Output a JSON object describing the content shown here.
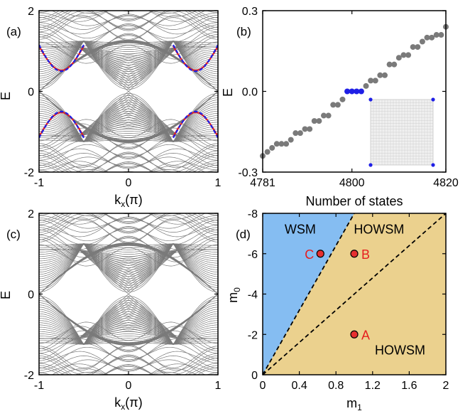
{
  "panels": {
    "a": {
      "label": "(a)"
    },
    "b": {
      "label": "(b)"
    },
    "c": {
      "label": "(c)"
    },
    "d": {
      "label": "(d)"
    }
  },
  "colors": {
    "bulk": "#7a7a7a",
    "state_dot": "#7a7a7a",
    "zero_mode": "#1f1fe6",
    "edge_blue": "#1f1fe6",
    "edge_red": "#e61f1f",
    "wsm_region": "#85bdf2",
    "howsm_region": "#ebd18e",
    "point": "#e63030",
    "point_label": "#e61f1f"
  },
  "chart_data": [
    {
      "panel": "a",
      "type": "line",
      "xlabel": "k",
      "xlabel_sub": "x",
      "xlabel_unit": "(π)",
      "ylabel": "E",
      "xlim": [
        -1,
        1
      ],
      "ylim": [
        -2,
        2
      ],
      "xticks": [
        -1,
        0,
        1
      ],
      "yticks": [
        -2,
        0,
        2
      ],
      "xtick_labels": [
        "-1",
        "0",
        "1"
      ],
      "ytick_labels": [
        "-2",
        "0",
        "2"
      ],
      "bands": "many bulk subbands (gray) with hinge/edge states highlighted",
      "edge_states": {
        "blue_kx": [
          -0.95,
          -0.5,
          0.5,
          0.95
        ],
        "energy_range": [
          -1.2,
          1.2
        ]
      }
    },
    {
      "panel": "b",
      "type": "scatter",
      "xlabel": "Number of states",
      "ylabel": "E",
      "xlim": [
        4781,
        4820
      ],
      "ylim": [
        -0.3,
        0.3
      ],
      "xticks": [
        4781,
        4800,
        4820
      ],
      "yticks": [
        -0.3,
        0.0,
        0.3
      ],
      "xtick_labels": [
        "4781",
        "4800",
        "4820"
      ],
      "ytick_labels": [
        "-0.3",
        "0.0",
        "0.3"
      ],
      "series": [
        {
          "x": [
            4781,
            4782,
            4783,
            4784,
            4785,
            4786,
            4787,
            4788,
            4789,
            4790,
            4791,
            4792,
            4793,
            4794,
            4795,
            4796,
            4797,
            4798,
            4803,
            4804,
            4805,
            4806,
            4807,
            4808,
            4809,
            4810,
            4811,
            4812,
            4813,
            4814,
            4815,
            4816,
            4817,
            4818,
            4819,
            4820
          ],
          "y": [
            -0.24,
            -0.225,
            -0.21,
            -0.195,
            -0.195,
            -0.195,
            -0.18,
            -0.155,
            -0.155,
            -0.14,
            -0.14,
            -0.11,
            -0.11,
            -0.09,
            -0.09,
            -0.05,
            -0.05,
            -0.03,
            0.02,
            0.04,
            0.04,
            0.06,
            0.06,
            0.1,
            0.1,
            0.125,
            0.135,
            0.135,
            0.165,
            0.165,
            0.185,
            0.2,
            0.2,
            0.21,
            0.21,
            0.24
          ]
        },
        {
          "x": [
            4799,
            4800,
            4801,
            4802
          ],
          "y": [
            0.0,
            0.0,
            0.0,
            0.0
          ]
        }
      ],
      "inset": "square lattice with corner-localized zero modes"
    },
    {
      "panel": "c",
      "type": "line",
      "xlabel": "k",
      "xlabel_sub": "x",
      "xlabel_unit": "(π)",
      "ylabel": "E",
      "xlim": [
        -1,
        1
      ],
      "ylim": [
        -2,
        2
      ],
      "xticks": [
        -1,
        0,
        1
      ],
      "yticks": [
        -2,
        0,
        2
      ],
      "xtick_labels": [
        "-1",
        "0",
        "1"
      ],
      "ytick_labels": [
        "-2",
        "0",
        "2"
      ],
      "bands": "many bulk subbands (gray), no in-gap states"
    },
    {
      "panel": "d",
      "type": "area",
      "xlabel": "m",
      "xlabel_sub": "1",
      "ylabel": "m",
      "ylabel_sub": "0",
      "xlim": [
        0,
        2
      ],
      "ylim": [
        0,
        -8
      ],
      "xticks": [
        0,
        0.4,
        0.8,
        1.2,
        1.6,
        2
      ],
      "yticks": [
        0,
        -2,
        -4,
        -6,
        -8
      ],
      "xtick_labels": [
        "0",
        "0.4",
        "0.8",
        "1.2",
        "1.6",
        "2"
      ],
      "ytick_labels": [
        "0",
        "-2",
        "-4",
        "-6",
        "-8"
      ],
      "boundaries": [
        {
          "slope": -8
        },
        {
          "slope": -4
        }
      ],
      "regions": [
        {
          "name": "WSM",
          "pos": [
            0.41,
            -7.0
          ]
        },
        {
          "name": "HOWSM",
          "pos": [
            1.27,
            -7.0
          ]
        },
        {
          "name": "HOWSM",
          "pos": [
            1.5,
            -1.0
          ]
        }
      ],
      "points": [
        {
          "name": "A",
          "m1": 1.0,
          "m0": -2.0
        },
        {
          "name": "B",
          "m1": 1.0,
          "m0": -6.0
        },
        {
          "name": "C",
          "m1": 0.63,
          "m0": -6.0
        }
      ]
    }
  ]
}
